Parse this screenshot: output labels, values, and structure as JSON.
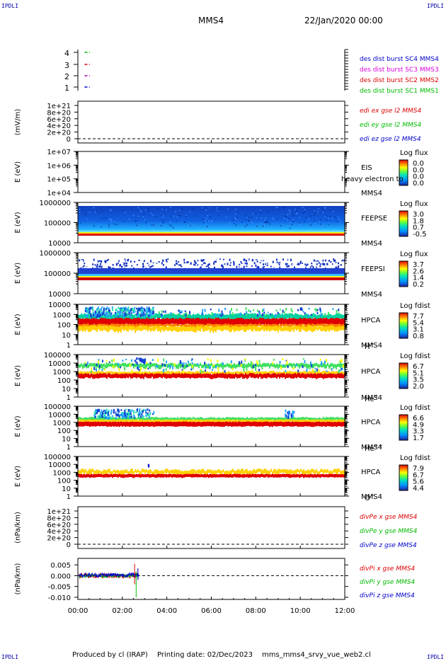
{
  "corner_text": "IPDLI",
  "header": {
    "spacecraft": "MMS4",
    "datetime": "22/Jan/2020 00:00"
  },
  "footer": {
    "produced_by": "Produced by cl (IRAP)",
    "printing_date": "Printing date: 02/Dec/2023",
    "file": "mms_mms4_srvy_vue_web2.cl"
  },
  "x_axis": {
    "ticks": [
      "00:00",
      "02:00",
      "04:00",
      "06:00",
      "08:00",
      "10:00",
      "12:00"
    ]
  },
  "colors": {
    "red": "#dd0000",
    "green": "#00bb00",
    "blue": "#0000cc",
    "magenta": "#dd00dd"
  },
  "chart_data": [
    {
      "type": "scatter",
      "panel": "burst",
      "ylim": [
        0.5,
        4.5
      ],
      "yticks": [
        "4",
        "3",
        "2",
        "1"
      ],
      "series": [
        {
          "name": "des dist burst SC1 MMS1",
          "color": "#00bb00",
          "y": 4,
          "x": [
            0.3,
            0.5
          ]
        },
        {
          "name": "des dist burst SC2 MMS2",
          "color": "#dd0000",
          "y": 3,
          "x": [
            0.3,
            0.5
          ]
        },
        {
          "name": "des dist burst SC3 MMS3",
          "color": "#aa00aa",
          "y": 2,
          "x": [
            0.3,
            0.5
          ]
        },
        {
          "name": "des dist burst SC4 MMS4",
          "color": "#0000cc",
          "y": 1,
          "x": [
            0.3,
            0.5
          ]
        }
      ],
      "legend_colors": [
        "#0000cc",
        "#dd00dd",
        "#dd0000",
        "#00bb00"
      ]
    },
    {
      "type": "line",
      "panel": "edi",
      "ylabel": "(mV/m)",
      "yticks": [
        "1e+21",
        "8e+20",
        "6e+20",
        "4e+20",
        "2e+20",
        "0"
      ],
      "series": [
        {
          "name": "edi ex gse l2 MMS4",
          "color": "#dd0000"
        },
        {
          "name": "edi ey gse l2 MMS4",
          "color": "#00bb00"
        },
        {
          "name": "edi ez gse l2 MMS4",
          "color": "#0000cc"
        }
      ]
    },
    {
      "type": "heatmap",
      "panel": "eis",
      "ylabel": "E (eV)",
      "yticks": [
        "1e+07",
        "1e+06",
        "1e+05",
        "1e+04"
      ],
      "labels": [
        "EIS",
        "MMS4"
      ],
      "overlay_text": "heavy electron to",
      "colorbar": {
        "title": "Log flux",
        "ticks": [
          "0.0",
          "0.0",
          "0.0",
          "0.0"
        ]
      }
    },
    {
      "type": "heatmap",
      "panel": "feeps_e",
      "ylabel": "E (eV)",
      "yticks": [
        "1000000",
        "100000",
        "10000"
      ],
      "labels": [
        "FEEPSE",
        "MMS4"
      ],
      "colorbar": {
        "title": "Log flux",
        "ticks": [
          "3.0",
          "1.8",
          "0.7",
          "-0.5"
        ]
      }
    },
    {
      "type": "heatmap",
      "panel": "feeps_i",
      "ylabel": "E (eV)",
      "yticks": [
        "1000000",
        "100000",
        "10000"
      ],
      "labels": [
        "FEEPSI",
        "MMS4"
      ],
      "colorbar": {
        "title": "Log flux",
        "ticks": [
          "3.7",
          "2.6",
          "1.4",
          "0.2"
        ]
      }
    },
    {
      "type": "heatmap",
      "panel": "hpca_h",
      "ylabel": "E (eV)",
      "yticks": [
        "10000",
        "1000",
        "100",
        "10",
        "1"
      ],
      "labels": [
        "HPCA",
        "MMS4"
      ],
      "species": "H",
      "charge": "+",
      "colorbar": {
        "title": "Log fdist",
        "ticks": [
          "7.7",
          "5.4",
          "3.1",
          "0.8"
        ]
      }
    },
    {
      "type": "heatmap",
      "panel": "hpca_he",
      "ylabel": "E (eV)",
      "yticks": [
        "100000",
        "10000",
        "1000",
        "100",
        "10",
        "1"
      ],
      "labels": [
        "HPCA",
        "MMS4"
      ],
      "species": "He",
      "charge": "+",
      "colorbar": {
        "title": "Log fdist",
        "ticks": [
          "6.7",
          "5.1",
          "3.5",
          "2.0"
        ]
      }
    },
    {
      "type": "heatmap",
      "panel": "hpca_hepp",
      "ylabel": "E (eV)",
      "yticks": [
        "100000",
        "10000",
        "1000",
        "100",
        "10",
        "1"
      ],
      "labels": [
        "HPCA",
        "MMS4"
      ],
      "species": "He",
      "charge": "++",
      "colorbar": {
        "title": "Log fdist",
        "ticks": [
          "6.6",
          "4.9",
          "3.3",
          "1.7"
        ]
      }
    },
    {
      "type": "heatmap",
      "panel": "hpca_o",
      "ylabel": "E (eV)",
      "yticks": [
        "100000",
        "10000",
        "1000",
        "100",
        "10",
        "1"
      ],
      "labels": [
        "HPCA",
        "MMS4"
      ],
      "species": "O",
      "charge": "+",
      "colorbar": {
        "title": "Log fdist",
        "ticks": [
          "7.9",
          "6.7",
          "5.6",
          "4.4"
        ]
      }
    },
    {
      "type": "line",
      "panel": "divpe",
      "ylabel": "(nPa/km)",
      "yticks": [
        "1e+21",
        "8e+20",
        "6e+20",
        "4e+20",
        "2e+20",
        "0"
      ],
      "series": [
        {
          "name": "divPe x gse MMS4",
          "color": "#dd0000"
        },
        {
          "name": "divPe y gse MMS4",
          "color": "#00bb00"
        },
        {
          "name": "divPe z gse MMS4",
          "color": "#0000cc"
        }
      ]
    },
    {
      "type": "line",
      "panel": "divpi",
      "ylabel": "(nPa/km)",
      "ylim": [
        -0.011,
        0.008
      ],
      "yticks": [
        "0.005",
        "0.000",
        "-0.005",
        "-0.010"
      ],
      "series": [
        {
          "name": "divPi x gse MMS4",
          "color": "#dd0000"
        },
        {
          "name": "divPi y gse MMS4",
          "color": "#00bb00"
        },
        {
          "name": "divPi z gse MMS4",
          "color": "#0000cc"
        }
      ]
    }
  ]
}
